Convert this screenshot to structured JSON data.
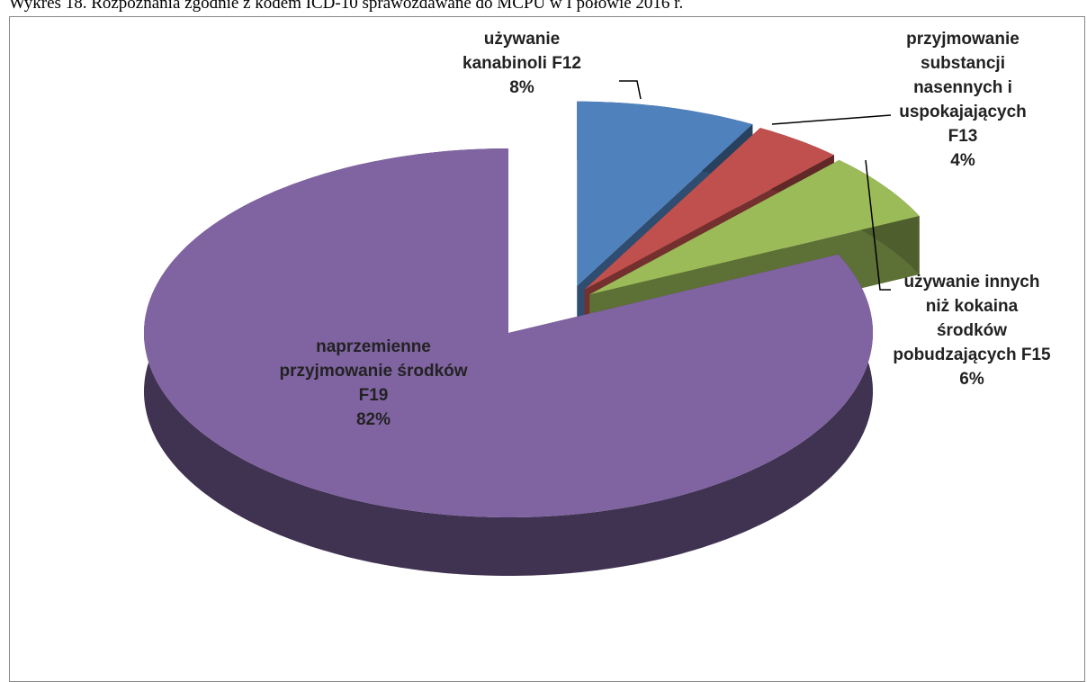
{
  "chart_data": {
    "type": "pie3d",
    "title": "Wykres 18. Rozpoznania zgodnie z kodem ICD-10 sprawozdawane do MCPU w I połowie 2016 r.",
    "categories": [
      "używanie kanabinoli F12",
      "przyjmowanie substancji nasennych i uspokajających F13",
      "używanie innych niż kokaina środków pobudzających F15",
      "naprzemienne przyjmowanie środków F19"
    ],
    "values": [
      8,
      4,
      6,
      82
    ],
    "value_labels": [
      "8%",
      "4%",
      "6%",
      "82%"
    ],
    "colors": [
      "#4f81bd",
      "#c0504d",
      "#9bbb59",
      "#8064a2"
    ]
  }
}
